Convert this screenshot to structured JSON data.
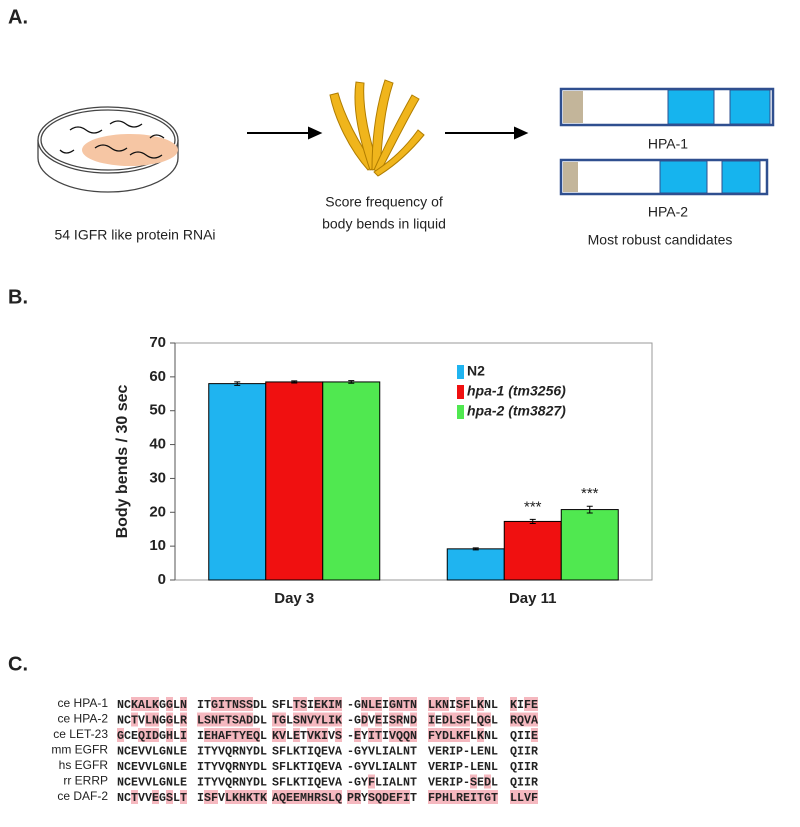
{
  "panel_a": {
    "label": "A.",
    "step1": "54 IGFR like protein RNAi",
    "step2": [
      "Score frequency of",
      "body bends in liquid"
    ],
    "proteins": [
      "HPA-1",
      "HPA-2"
    ],
    "caption": "Most robust candidates"
  },
  "panel_b": {
    "label": "B."
  },
  "chart_data": {
    "type": "bar",
    "ylabel": "Body bends / 30 sec",
    "categories": [
      "Day 3",
      "Day 11"
    ],
    "series": [
      {
        "name": "N2",
        "color": "#1fb4f0",
        "values": [
          58,
          9.2
        ],
        "errors": [
          0.5,
          0.3
        ]
      },
      {
        "name": "hpa-1 (tm3256)",
        "color": "#f01010",
        "values": [
          58.5,
          17.3
        ],
        "errors": [
          0.3,
          0.6
        ]
      },
      {
        "name": "hpa-2 (tm3827)",
        "color": "#50e850",
        "values": [
          58.5,
          20.8
        ],
        "errors": [
          0.4,
          1
        ]
      }
    ],
    "annotations": [
      {
        "text": "***",
        "series": 1,
        "category": 1
      },
      {
        "text": "***",
        "series": 2,
        "category": 1
      }
    ],
    "ylim": [
      0,
      70
    ],
    "yticks": [
      0,
      10,
      20,
      30,
      40,
      50,
      60,
      70
    ]
  },
  "panel_c": {
    "label": "C.",
    "rows": [
      {
        "name": "ce HPA-1",
        "blocks": [
          "NCKALKGGLN",
          "ITGITNSSDL",
          "SFLTSIEKIM",
          "-GNLEIGNTN",
          "LKNISFLKNL",
          "KIFE"
        ]
      },
      {
        "name": "ce HPA-2",
        "blocks": [
          "NCTVLNGGLR",
          "LSNFTSADDL",
          "TGLSNVYLIK",
          "-GDVEISRND",
          "IEDLSFLQGL",
          "RQVA"
        ]
      },
      {
        "name": "ce LET-23",
        "blocks": [
          "GCEQIDGHLI",
          "IEHAFTYEQL",
          "KVLETVKIVS",
          "-EYITIVQQN",
          "FYDLKFLKNL",
          "QIIE"
        ]
      },
      {
        "name": "mm EGFR",
        "blocks": [
          "NCEVVLGNLE",
          "ITYVQRNYDL",
          "SFLKTIQEVA",
          "-GYVLIALNT",
          "VERIP-LENL",
          "QIIR"
        ]
      },
      {
        "name": "hs EGFR",
        "blocks": [
          "NCEVVLGNLE",
          "ITYVQRNYDL",
          "SFLKTIQEVA",
          "-GYVLIALNT",
          "VERIP-LENL",
          "QIIR"
        ]
      },
      {
        "name": "rr ERRP",
        "blocks": [
          "NCEVVLGNLE",
          "ITYVQRNYDL",
          "SFLKTIQEVA",
          "-GYFLIALNT",
          "VERIP-SEDL",
          "QIIR"
        ]
      },
      {
        "name": "ce DAF-2",
        "blocks": [
          "NCTVVEGSLT",
          "ISFVLKHKTK",
          "AQEEMHRSLQ",
          "PRYSQDEFIT",
          "FPHLREITGT",
          "LLVF"
        ]
      }
    ]
  }
}
